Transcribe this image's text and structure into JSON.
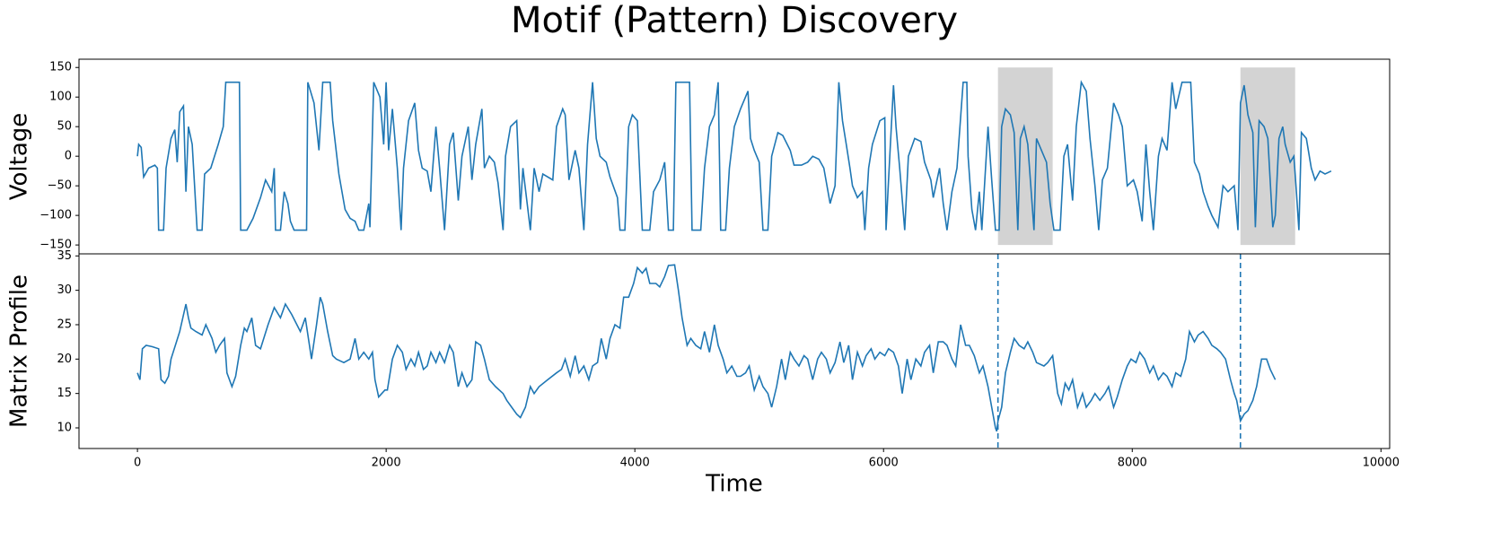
{
  "chart_data": [
    {
      "type": "line",
      "title": "Motif (Pattern) Discovery",
      "ylabel": "Voltage",
      "color": "#1f77b4",
      "xlim": [
        -470,
        10070
      ],
      "ylim": [
        -165,
        164
      ],
      "yticks": [
        {
          "value": -150,
          "label": "−150"
        },
        {
          "value": -100,
          "label": "−100"
        },
        {
          "value": -50,
          "label": "−50"
        },
        0,
        50,
        100,
        150
      ],
      "spans": [
        [
          6920,
          7360
        ],
        [
          8870,
          9310
        ]
      ],
      "span_color": "#d3d3d3",
      "x": [
        0,
        10,
        30,
        50,
        90,
        140,
        160,
        170,
        210,
        230,
        270,
        300,
        320,
        340,
        370,
        390,
        410,
        440,
        480,
        520,
        540,
        590,
        650,
        690,
        710,
        820,
        830,
        880,
        930,
        990,
        1030,
        1080,
        1100,
        1110,
        1150,
        1180,
        1210,
        1230,
        1260,
        1360,
        1370,
        1420,
        1460,
        1490,
        1550,
        1570,
        1620,
        1670,
        1710,
        1750,
        1780,
        1820,
        1860,
        1870,
        1900,
        1950,
        1980,
        2000,
        2020,
        2050,
        2090,
        2120,
        2140,
        2180,
        2230,
        2260,
        2290,
        2330,
        2360,
        2400,
        2430,
        2470,
        2510,
        2540,
        2580,
        2610,
        2660,
        2690,
        2720,
        2770,
        2790,
        2830,
        2870,
        2900,
        2940,
        2960,
        3000,
        3050,
        3080,
        3100,
        3160,
        3190,
        3230,
        3260,
        3340,
        3370,
        3420,
        3440,
        3470,
        3520,
        3550,
        3590,
        3620,
        3660,
        3690,
        3720,
        3770,
        3800,
        3860,
        3880,
        3920,
        3950,
        3980,
        4020,
        4060,
        4120,
        4150,
        4200,
        4240,
        4270,
        4310,
        4330,
        4440,
        4460,
        4530,
        4560,
        4600,
        4640,
        4670,
        4690,
        4730,
        4760,
        4800,
        4850,
        4910,
        4930,
        4960,
        5000,
        5030,
        5070,
        5100,
        5150,
        5190,
        5250,
        5280,
        5340,
        5390,
        5430,
        5480,
        5520,
        5570,
        5610,
        5640,
        5670,
        5700,
        5730,
        5750,
        5790,
        5830,
        5850,
        5880,
        5910,
        5970,
        6010,
        6020,
        6040,
        6080,
        6100,
        6130,
        6170,
        6200,
        6250,
        6300,
        6330,
        6380,
        6400,
        6450,
        6480,
        6510,
        6550,
        6590,
        6640,
        6670,
        6680,
        6710,
        6740,
        6770,
        6790,
        6840,
        6870,
        6900,
        6930,
        6950,
        6980,
        7020,
        7050,
        7080,
        7100,
        7130,
        7160,
        7210,
        7230,
        7270,
        7310,
        7340,
        7370,
        7420,
        7450,
        7480,
        7520,
        7550,
        7590,
        7630,
        7660,
        7700,
        7730,
        7760,
        7800,
        7850,
        7890,
        7920,
        7960,
        8010,
        8040,
        8080,
        8110,
        8140,
        8170,
        8210,
        8240,
        8280,
        8320,
        8350,
        8400,
        8470,
        8500,
        8540,
        8570,
        8610,
        8640,
        8690,
        8730,
        8770,
        8820,
        8850,
        8870,
        8900,
        8930,
        8970,
        8990,
        9020,
        9060,
        9090,
        9130,
        9150,
        9180,
        9210,
        9230,
        9270,
        9300,
        9320,
        9340,
        9360,
        9400,
        9440,
        9470,
        9510,
        9550,
        9600
      ],
      "values": [
        0,
        20,
        15,
        -35,
        -20,
        -15,
        -20,
        -125,
        -125,
        -20,
        30,
        45,
        -10,
        75,
        85,
        -60,
        50,
        20,
        -125,
        -125,
        -30,
        -20,
        20,
        50,
        125,
        125,
        -125,
        -125,
        -105,
        -70,
        -40,
        -60,
        -20,
        -125,
        -125,
        -60,
        -80,
        -110,
        -125,
        -125,
        125,
        90,
        10,
        125,
        125,
        60,
        -30,
        -90,
        -105,
        -110,
        -125,
        -125,
        -80,
        -120,
        125,
        100,
        20,
        125,
        10,
        80,
        -20,
        -125,
        -20,
        60,
        90,
        10,
        -20,
        -25,
        -60,
        50,
        -20,
        -125,
        20,
        40,
        -75,
        0,
        50,
        -40,
        20,
        80,
        -20,
        0,
        -10,
        -45,
        -125,
        0,
        50,
        60,
        -90,
        -20,
        -125,
        -20,
        -60,
        -30,
        -40,
        50,
        80,
        70,
        -40,
        10,
        -20,
        -125,
        20,
        125,
        30,
        0,
        -10,
        -35,
        -70,
        -125,
        -125,
        50,
        70,
        60,
        -125,
        -125,
        -60,
        -40,
        -10,
        -125,
        -125,
        125,
        125,
        -125,
        -125,
        -20,
        50,
        70,
        125,
        -125,
        -125,
        -20,
        50,
        80,
        110,
        30,
        10,
        -10,
        -125,
        -125,
        0,
        40,
        35,
        10,
        -15,
        -15,
        -10,
        0,
        -5,
        -20,
        -80,
        -50,
        125,
        60,
        20,
        -20,
        -50,
        -70,
        -60,
        -125,
        -20,
        20,
        60,
        65,
        -125,
        -40,
        120,
        50,
        -20,
        -125,
        0,
        30,
        25,
        -10,
        -40,
        -70,
        -20,
        -80,
        -125,
        -60,
        -20,
        125,
        125,
        0,
        -90,
        -125,
        -60,
        -125,
        50,
        -40,
        -125,
        -125,
        50,
        80,
        70,
        40,
        -125,
        30,
        50,
        20,
        -125,
        30,
        10,
        -10,
        -80,
        -125,
        -125,
        0,
        20,
        -75,
        50,
        125,
        110,
        30,
        -50,
        -125,
        -40,
        -20,
        90,
        70,
        50,
        -50,
        -40,
        -60,
        -110,
        20,
        -60,
        -125,
        0,
        30,
        10,
        125,
        80,
        125,
        125,
        -10,
        -30,
        -60,
        -85,
        -100,
        -120,
        -50,
        -60,
        -50,
        -125,
        90,
        120,
        70,
        40,
        -120,
        60,
        50,
        30,
        -120,
        -100,
        30,
        50,
        20,
        -10,
        0,
        -60,
        -125,
        40,
        30,
        -20,
        -40,
        -25,
        -30,
        -25
      ]
    },
    {
      "type": "line",
      "ylabel": "Matrix Profile",
      "xlabel": "Time",
      "color": "#1f77b4",
      "xlim": [
        -470,
        10070
      ],
      "ylim": [
        7,
        35.3
      ],
      "xticks": [
        0,
        2000,
        4000,
        6000,
        8000,
        10000
      ],
      "yticks": [
        10,
        15,
        20,
        25,
        30,
        35
      ],
      "vlines": [
        6920,
        8870
      ],
      "vline_dash": "6,4",
      "x": [
        0,
        20,
        40,
        70,
        120,
        170,
        190,
        220,
        250,
        270,
        340,
        390,
        410,
        430,
        470,
        520,
        550,
        600,
        630,
        660,
        700,
        720,
        760,
        790,
        830,
        860,
        880,
        920,
        950,
        990,
        1050,
        1100,
        1150,
        1190,
        1240,
        1310,
        1350,
        1400,
        1440,
        1470,
        1490,
        1530,
        1570,
        1600,
        1660,
        1710,
        1750,
        1780,
        1820,
        1860,
        1890,
        1910,
        1940,
        1990,
        2010,
        2050,
        2090,
        2130,
        2160,
        2200,
        2230,
        2260,
        2300,
        2330,
        2360,
        2400,
        2430,
        2470,
        2510,
        2540,
        2580,
        2610,
        2650,
        2690,
        2720,
        2760,
        2790,
        2830,
        2880,
        2940,
        2970,
        3010,
        3050,
        3080,
        3120,
        3160,
        3190,
        3230,
        3300,
        3370,
        3410,
        3440,
        3480,
        3520,
        3550,
        3590,
        3630,
        3660,
        3700,
        3730,
        3770,
        3800,
        3840,
        3880,
        3910,
        3950,
        3990,
        4020,
        4060,
        4090,
        4120,
        4170,
        4200,
        4240,
        4270,
        4320,
        4350,
        4380,
        4420,
        4450,
        4490,
        4530,
        4560,
        4600,
        4640,
        4670,
        4710,
        4740,
        4780,
        4820,
        4850,
        4890,
        4920,
        4960,
        5000,
        5030,
        5070,
        5100,
        5140,
        5180,
        5210,
        5250,
        5280,
        5320,
        5360,
        5390,
        5430,
        5470,
        5500,
        5540,
        5570,
        5610,
        5650,
        5680,
        5720,
        5750,
        5790,
        5830,
        5860,
        5900,
        5930,
        5970,
        6010,
        6040,
        6080,
        6120,
        6150,
        6190,
        6220,
        6260,
        6300,
        6330,
        6370,
        6400,
        6440,
        6480,
        6510,
        6550,
        6580,
        6620,
        6660,
        6690,
        6730,
        6770,
        6800,
        6840,
        6870,
        6900,
        6910,
        6920,
        6950,
        6980,
        7020,
        7050,
        7090,
        7130,
        7160,
        7200,
        7230,
        7290,
        7320,
        7360,
        7400,
        7430,
        7460,
        7490,
        7520,
        7560,
        7600,
        7630,
        7670,
        7700,
        7740,
        7780,
        7810,
        7850,
        7880,
        7920,
        7960,
        7990,
        8030,
        8060,
        8100,
        8140,
        8170,
        8210,
        8250,
        8280,
        8320,
        8350,
        8390,
        8430,
        8460,
        8500,
        8530,
        8570,
        8610,
        8640,
        8680,
        8710,
        8750,
        8790,
        8820,
        8840,
        8870,
        8900,
        8930,
        8970,
        9000,
        9040,
        9080,
        9110,
        9150
      ],
      "values": [
        18,
        17,
        21.5,
        22,
        21.8,
        21.5,
        17,
        16.5,
        17.5,
        20,
        24,
        28,
        26,
        24.5,
        24,
        23.5,
        25,
        23,
        21,
        22,
        23,
        18,
        16,
        17.5,
        22,
        24.5,
        24,
        26,
        22,
        21.5,
        25,
        27.5,
        26,
        28,
        26.5,
        24,
        26,
        20,
        25,
        29,
        28,
        24,
        20.5,
        20,
        19.5,
        20,
        23,
        20,
        21,
        20,
        21,
        17,
        14.5,
        15.5,
        15.5,
        20,
        22,
        21,
        18.5,
        20,
        19,
        21,
        18.5,
        19,
        21,
        19.5,
        21,
        19.5,
        22,
        21,
        16,
        18,
        16,
        17,
        22.5,
        22,
        20,
        17,
        16,
        15,
        14,
        13,
        12,
        11.5,
        13,
        16,
        15,
        16,
        17,
        18,
        18.5,
        20,
        17.5,
        20.5,
        18,
        19,
        17,
        19,
        19.5,
        23,
        20,
        23,
        25,
        24.5,
        29,
        29,
        31,
        33.3,
        32.5,
        33.2,
        31,
        31,
        30.5,
        32,
        33.6,
        33.7,
        30,
        26,
        22,
        23,
        22,
        21.5,
        24,
        21,
        25,
        22,
        20,
        18,
        19,
        17.5,
        17.5,
        18,
        19,
        15.5,
        17.5,
        16,
        15,
        13,
        16,
        20,
        17,
        21,
        20,
        19,
        20.5,
        20,
        17,
        20,
        21,
        20,
        18,
        19.5,
        22.5,
        19.5,
        22,
        17,
        21,
        19,
        20.5,
        21.5,
        20,
        21,
        20.5,
        21.5,
        21,
        19,
        15,
        20,
        17,
        20,
        19,
        21,
        22,
        18,
        22.5,
        22.5,
        22,
        20,
        19,
        25,
        22,
        22,
        20.5,
        18,
        19,
        16,
        13,
        10,
        9.5,
        11,
        13,
        18,
        21,
        23,
        22,
        21.5,
        22.5,
        21,
        19.5,
        19,
        19.5,
        20.5,
        15,
        13.5,
        16.5,
        15.5,
        17,
        13,
        15,
        13,
        14,
        15,
        14,
        15,
        16,
        13,
        14.5,
        17,
        19,
        20,
        19.5,
        21,
        20,
        18,
        19,
        17,
        18,
        17.5,
        16,
        18,
        17.5,
        20,
        24,
        22.5,
        23.5,
        24,
        23,
        22,
        21.5,
        21,
        20,
        17,
        15,
        14,
        11,
        12,
        12.5,
        14,
        16,
        20,
        20,
        18.5,
        17
      ]
    }
  ]
}
